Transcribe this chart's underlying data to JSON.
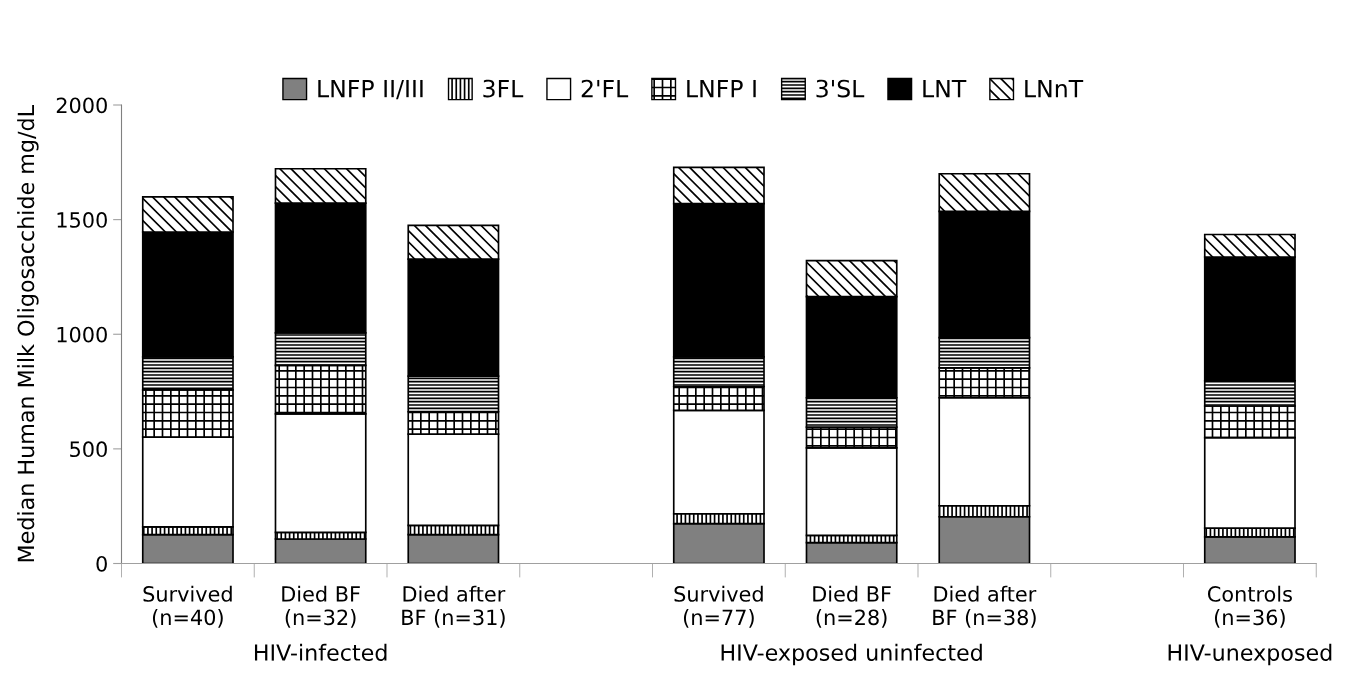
{
  "chart_data": {
    "type": "bar",
    "stacked": true,
    "ylabel": "Median Human Milk Oligosacchide mg/dL",
    "categories": [
      "Survived\n(n=40)",
      "Died BF\n(n=32)",
      "Died after\nBF (n=31)",
      null,
      "Survived\n(n=77)",
      "Died BF\n(n=28)",
      "Died after\nBF (n=38)",
      null,
      "Controls\n(n=36)"
    ],
    "series": [
      {
        "name": "LNFP II/III",
        "color": "#808080",
        "values": [
          126,
          107,
          126,
          null,
          174,
          91,
          204,
          null,
          116
        ]
      },
      {
        "name": "3FL",
        "color": "#000000",
        "values": [
          34,
          29,
          40,
          null,
          43,
          32,
          48,
          null,
          38
        ]
      },
      {
        "name": "2'FL",
        "color": "#ffffff",
        "values": [
          391,
          517,
          398,
          null,
          451,
          381,
          471,
          null,
          395
        ]
      },
      {
        "name": "LNFP I",
        "color": "#000000",
        "values": [
          206,
          211,
          98,
          null,
          104,
          91,
          130,
          null,
          138
        ]
      },
      {
        "name": "3'SL",
        "color": "#000000",
        "values": [
          144,
          142,
          155,
          null,
          129,
          128,
          132,
          null,
          110
        ]
      },
      {
        "name": "LNT",
        "color": "#000000",
        "values": [
          545,
          566,
          511,
          null,
          669,
          441,
          551,
          null,
          540
        ]
      },
      {
        "name": "LNnT",
        "color": "#000000",
        "values": [
          153,
          150,
          147,
          null,
          158,
          157,
          164,
          null,
          98
        ]
      }
    ],
    "ylim": [
      0,
      2000
    ],
    "yticks": [
      0,
      500,
      1000,
      1500,
      2000
    ],
    "grid": false,
    "legend": "top",
    "annotations": [
      "HIV-infected",
      "HIV-exposed uninfected",
      "HIV-unexposed"
    ]
  }
}
